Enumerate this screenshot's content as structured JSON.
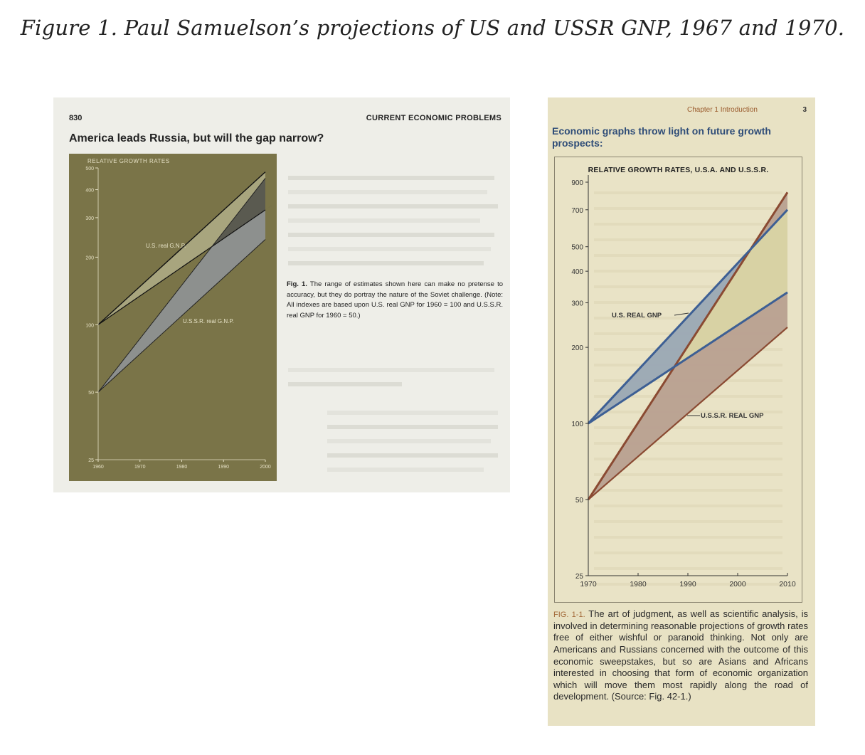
{
  "figure_caption": "Figure 1. Paul Samuelson’s projections of US and USSR GNP, 1967 and 1970.",
  "left_page": {
    "page_number": "830",
    "running_head": "CURRENT ECONOMIC PROBLEMS",
    "heading": "America leads Russia, but will the gap narrow?",
    "chart_panel_title": "RELATIVE GROWTH RATES",
    "us_label": "U.S. real G.N.P.",
    "ussr_label": "U.S.S.R. real G.N.P.",
    "fig_label": "Fig. 1.",
    "fig_note": "The range of estimates shown here can make no pretense to accuracy, but they do portray the nature of the Soviet challenge. (Note: All indexes are based upon U.S. real GNP for 1960 = 100 and U.S.S.R. real GNP for 1960 = 50.)"
  },
  "right_page": {
    "running_head": "Chapter 1  Introduction",
    "page_number": "3",
    "heading": "Economic graphs throw light on future growth prospects:",
    "chart_title": "RELATIVE GROWTH RATES, U.S.A. AND U.S.S.R.",
    "us_label": "U.S. REAL GNP",
    "ussr_label": "U.S.S.R. REAL GNP",
    "fig_label": "FIG. 1-1.",
    "fig_caption": "The art of judgment, as well as scientific analysis, is involved in determining reasonable projections of growth rates free of either wishful or paranoid thinking. Not only are Americans and Russians concerned with the outcome of this economic sweepstakes, but so are Asians and Africans interested in choosing that form of economic organization which will move them most rapidly along the road of development. (Source: Fig. 42-1.)"
  },
  "colors": {
    "left_bg": "#7a7448",
    "left_us_band": "#a8a57e",
    "left_ussr_band": "#8d908e",
    "left_overlap": "#5a5a50",
    "right_us": "#3d5f94",
    "right_us_fill": "#9aa8b4",
    "right_ussr": "#8a4a32",
    "right_ussr_fill": "#b8a090",
    "right_overlap": "#d8d2a4"
  },
  "chart_data": [
    {
      "type": "area",
      "title": "RELATIVE GROWTH RATES",
      "yscale": "log",
      "ylim": [
        25,
        500
      ],
      "yticks": [
        {
          "value": 500,
          "label": "500"
        },
        {
          "value": 400,
          "label": "400"
        },
        {
          "value": 300,
          "label": "300"
        },
        {
          "value": 200,
          "label": "200"
        },
        {
          "value": 100,
          "label": "100"
        },
        {
          "value": 50,
          "label": "50"
        },
        {
          "value": 25,
          "label": "25"
        }
      ],
      "xlim": [
        1960,
        2000
      ],
      "xticks": [
        {
          "value": 1960,
          "label": "1960"
        },
        {
          "value": 1970,
          "label": "1970"
        },
        {
          "value": 1980,
          "label": "1980"
        },
        {
          "value": 1990,
          "label": "1990"
        },
        {
          "value": 2000,
          "label": "2000"
        }
      ],
      "series": [
        {
          "name": "U.S. real G.N.P.",
          "start": [
            1960,
            100
          ],
          "high": [
            2000,
            480
          ],
          "low": [
            2000,
            325
          ]
        },
        {
          "name": "U.S.S.R. real G.N.P.",
          "start": [
            1960,
            50
          ],
          "high": [
            2000,
            450
          ],
          "low": [
            2000,
            240
          ]
        }
      ]
    },
    {
      "type": "area",
      "title": "RELATIVE GROWTH RATES, U.S.A. AND U.S.S.R.",
      "yscale": "log",
      "ylim": [
        25,
        900
      ],
      "yticks": [
        {
          "value": 900,
          "label": "900"
        },
        {
          "value": 700,
          "label": "700"
        },
        {
          "value": 500,
          "label": "500"
        },
        {
          "value": 400,
          "label": "400"
        },
        {
          "value": 300,
          "label": "300"
        },
        {
          "value": 200,
          "label": "200"
        },
        {
          "value": 100,
          "label": "100"
        },
        {
          "value": 50,
          "label": "50"
        },
        {
          "value": 25,
          "label": "25"
        }
      ],
      "xlim": [
        1970,
        2010
      ],
      "xticks": [
        {
          "value": 1970,
          "label": "1970"
        },
        {
          "value": 1980,
          "label": "1980"
        },
        {
          "value": 1990,
          "label": "1990"
        },
        {
          "value": 2000,
          "label": "2000"
        },
        {
          "value": 2010,
          "label": "2010"
        }
      ],
      "series": [
        {
          "name": "U.S. REAL GNP",
          "start": [
            1970,
            100
          ],
          "high": [
            2010,
            700
          ],
          "low": [
            2010,
            330
          ]
        },
        {
          "name": "U.S.S.R. REAL GNP",
          "start": [
            1970,
            50
          ],
          "high": [
            2010,
            820
          ],
          "low": [
            2010,
            240
          ]
        }
      ]
    }
  ]
}
